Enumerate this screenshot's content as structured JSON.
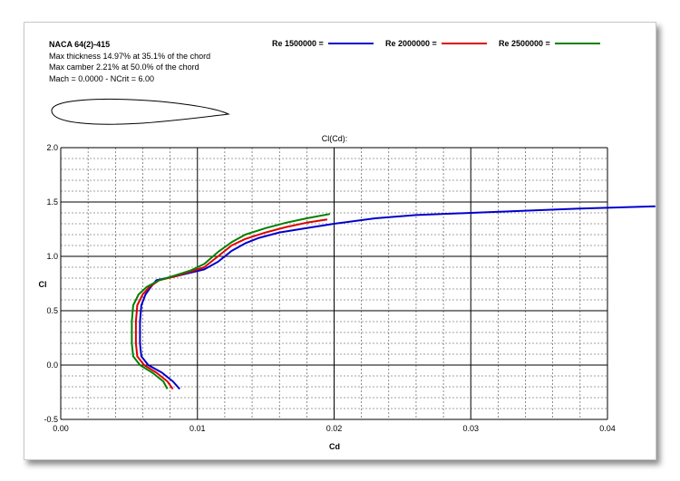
{
  "airfoil": {
    "name": "NACA 64(2)-415",
    "thickness": "Max thickness 14.97% at 35.1% of the chord",
    "camber": "Max camber 2.21% at 50.0% of the chord",
    "flow": "Mach = 0.0000 - NCrit = 6.00"
  },
  "colors": {
    "re1": "#0000cc",
    "re2": "#dd0000",
    "re3": "#008000",
    "grid": "#000000"
  },
  "chart_data": {
    "type": "line",
    "title": "Cl(Cd):",
    "xlabel": "Cd",
    "ylabel": "Cl",
    "xlim": [
      0.0,
      0.04
    ],
    "ylim": [
      -0.5,
      2.0
    ],
    "xticks": [
      "0.00",
      "0.01",
      "0.02",
      "0.03",
      "0.04"
    ],
    "yticks": [
      "-0.5",
      "0.0",
      "0.5",
      "1.0",
      "1.5",
      "2.0"
    ],
    "grid": true,
    "legend_position": "top",
    "series": [
      {
        "name": "Re 1500000 =",
        "color": "#0000cc",
        "points": [
          [
            0.0087,
            -0.22
          ],
          [
            0.0082,
            -0.15
          ],
          [
            0.0074,
            -0.07
          ],
          [
            0.0064,
            0.0
          ],
          [
            0.0059,
            0.08
          ],
          [
            0.0058,
            0.2
          ],
          [
            0.0058,
            0.4
          ],
          [
            0.0059,
            0.55
          ],
          [
            0.0062,
            0.65
          ],
          [
            0.0066,
            0.72
          ],
          [
            0.007,
            0.78
          ],
          [
            0.0085,
            0.82
          ],
          [
            0.0095,
            0.85
          ],
          [
            0.0105,
            0.88
          ],
          [
            0.0115,
            0.95
          ],
          [
            0.0125,
            1.05
          ],
          [
            0.0135,
            1.12
          ],
          [
            0.0145,
            1.17
          ],
          [
            0.016,
            1.22
          ],
          [
            0.018,
            1.26
          ],
          [
            0.02,
            1.3
          ],
          [
            0.023,
            1.35
          ],
          [
            0.026,
            1.38
          ],
          [
            0.03,
            1.4
          ],
          [
            0.034,
            1.42
          ],
          [
            0.038,
            1.44
          ],
          [
            0.0435,
            1.46
          ]
        ]
      },
      {
        "name": "Re 2000000 =",
        "color": "#dd0000",
        "points": [
          [
            0.0082,
            -0.22
          ],
          [
            0.0078,
            -0.15
          ],
          [
            0.007,
            -0.07
          ],
          [
            0.0061,
            0.0
          ],
          [
            0.0056,
            0.08
          ],
          [
            0.0055,
            0.2
          ],
          [
            0.0055,
            0.4
          ],
          [
            0.0056,
            0.55
          ],
          [
            0.006,
            0.65
          ],
          [
            0.0065,
            0.72
          ],
          [
            0.0072,
            0.78
          ],
          [
            0.0085,
            0.82
          ],
          [
            0.0095,
            0.86
          ],
          [
            0.0105,
            0.9
          ],
          [
            0.0115,
            1.0
          ],
          [
            0.0125,
            1.1
          ],
          [
            0.0135,
            1.16
          ],
          [
            0.015,
            1.22
          ],
          [
            0.0165,
            1.27
          ],
          [
            0.018,
            1.31
          ],
          [
            0.0195,
            1.34
          ]
        ]
      },
      {
        "name": "Re 2500000 =",
        "color": "#008000",
        "points": [
          [
            0.0078,
            -0.22
          ],
          [
            0.0075,
            -0.15
          ],
          [
            0.0067,
            -0.07
          ],
          [
            0.0058,
            0.0
          ],
          [
            0.0053,
            0.08
          ],
          [
            0.0052,
            0.2
          ],
          [
            0.0052,
            0.4
          ],
          [
            0.0053,
            0.55
          ],
          [
            0.0057,
            0.65
          ],
          [
            0.0063,
            0.72
          ],
          [
            0.0072,
            0.78
          ],
          [
            0.0085,
            0.83
          ],
          [
            0.0095,
            0.87
          ],
          [
            0.0105,
            0.93
          ],
          [
            0.0115,
            1.04
          ],
          [
            0.0125,
            1.13
          ],
          [
            0.0135,
            1.2
          ],
          [
            0.015,
            1.26
          ],
          [
            0.0165,
            1.31
          ],
          [
            0.018,
            1.35
          ],
          [
            0.0197,
            1.39
          ]
        ]
      }
    ]
  }
}
